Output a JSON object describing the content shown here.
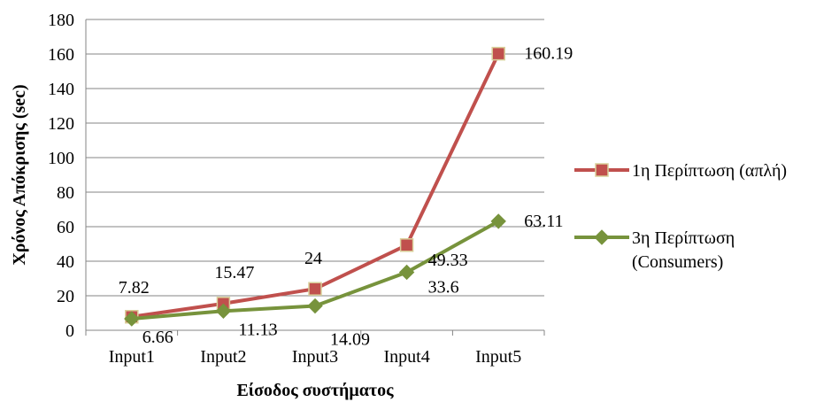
{
  "chart_data": {
    "type": "line",
    "title": "",
    "xlabel": "Είσοδος συστήματος",
    "ylabel": "Χρόνος Απόκρισης (sec)",
    "categories": [
      "Input1",
      "Input2",
      "Input3",
      "Input4",
      "Input5"
    ],
    "ylim": [
      0,
      180
    ],
    "yticks": [
      "0",
      "20",
      "40",
      "60",
      "80",
      "100",
      "120",
      "140",
      "160",
      "180"
    ],
    "grid": "horizontal",
    "legend_position": "right",
    "series": [
      {
        "name": "1η Περίπτωση (απλή)",
        "values": [
          7.82,
          15.47,
          24,
          49.33,
          160.19
        ],
        "labels": [
          "7.82",
          "15.47",
          "24",
          "49.33",
          "160.19"
        ],
        "color": "#C0504D",
        "marker": "square"
      },
      {
        "name": "3η Περίπτωση (Consumers)",
        "values": [
          6.66,
          11.13,
          14.09,
          33.6,
          63.11
        ],
        "labels": [
          "6.66",
          "11.13",
          "14.09",
          "33.6",
          "63.11"
        ],
        "color": "#77933C",
        "marker": "diamond"
      }
    ]
  }
}
